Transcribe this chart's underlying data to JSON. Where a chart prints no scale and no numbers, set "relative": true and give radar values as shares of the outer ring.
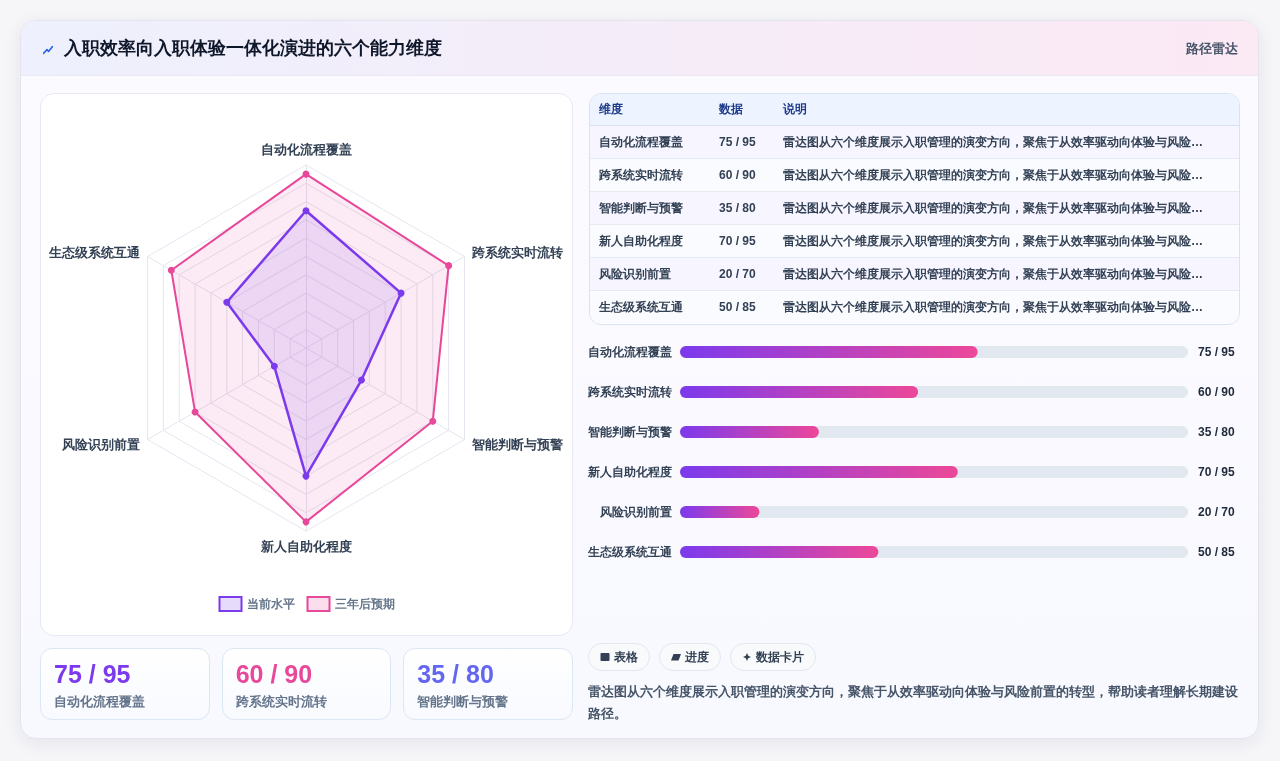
{
  "chart_data": [
    {
      "type": "radar",
      "title": "入职效率向入职体验一体化演进的六个能力维度",
      "annotations": [
        "路径雷达"
      ],
      "categories": [
        "自动化流程覆盖",
        "跨系统实时流转",
        "智能判断与预警",
        "新人自助化程度",
        "风险识别前置",
        "生态级系统互通"
      ],
      "relative": true,
      "series": [
        {
          "name": "当前水平",
          "color": "#7c3aed",
          "values": [
            0.75,
            0.6,
            0.35,
            0.7,
            0.2,
            0.5
          ]
        },
        {
          "name": "三年后预期",
          "color": "#e8489a",
          "values": [
            0.95,
            0.9,
            0.8,
            0.95,
            0.7,
            0.85
          ]
        }
      ],
      "legend": "bottom",
      "marker": "circle"
    },
    {
      "type": "other",
      "categories": [
        "维度",
        "数据",
        "说明"
      ],
      "cell_labels": [
        [
          "自动化流程覆盖",
          "75 / 95",
          "雷达图从六个维度展示入职管理的演变方向，聚焦于从效率驱动向体验与风险…"
        ],
        [
          "跨系统实时流转",
          "60 / 90",
          "雷达图从六个维度展示入职管理的演变方向，聚焦于从效率驱动向体验与风险…"
        ],
        [
          "智能判断与预警",
          "35 / 80",
          "雷达图从六个维度展示入职管理的演变方向，聚焦于从效率驱动向体验与风险…"
        ],
        [
          "新人自助化程度",
          "70 / 95",
          "雷达图从六个维度展示入职管理的演变方向，聚焦于从效率驱动向体验与风险…"
        ],
        [
          "风险识别前置",
          "20 / 70",
          "雷达图从六个维度展示入职管理的演变方向，聚焦于从效率驱动向体验与风险…"
        ],
        [
          "生态级系统互通",
          "50 / 85",
          "雷达图从六个维度展示入职管理的演变方向，聚焦于从效率驱动向体验与风险…"
        ]
      ]
    },
    {
      "type": "bar",
      "orientation": "horizontal",
      "categories": [
        "自动化流程覆盖",
        "跨系统实时流转",
        "智能判断与预警",
        "新人自助化程度",
        "风险识别前置",
        "生态级系统互通"
      ],
      "values": [
        75,
        60,
        35,
        70,
        20,
        50
      ],
      "value_labels": [
        "75 / 95",
        "60 / 90",
        "35 / 80",
        "70 / 95",
        "20 / 70",
        "50 / 85"
      ],
      "color": "#7c3aed",
      "xlim": [
        0,
        128
      ],
      "tick_labels": "y"
    },
    {
      "type": "other",
      "categories": [
        "自动化流程覆盖",
        "跨系统实时流转",
        "智能判断与预警"
      ],
      "value_labels": [
        "75 / 95",
        "60 / 90",
        "35 / 80"
      ]
    },
    {
      "type": "other",
      "annotations": [
        "表格",
        "进度",
        "数据卡片",
        "雷达图从六个维度展示入职管理的演变方向，聚焦于从效率驱动向体验与风险前置的转型，帮助读者理解长期建设路径。"
      ]
    }
  ]
}
